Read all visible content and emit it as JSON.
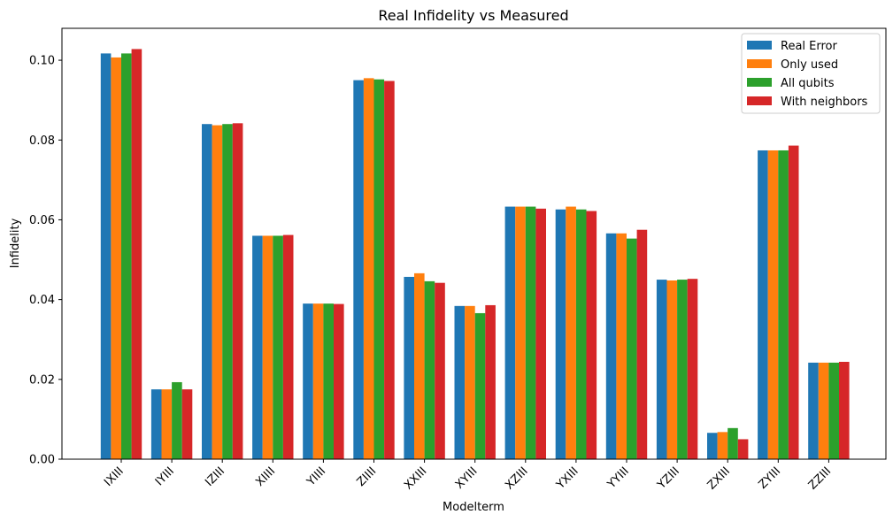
{
  "chart_data": {
    "type": "bar",
    "title": "Real Infidelity vs Measured",
    "xlabel": "Modelterm",
    "ylabel": "Infidelity",
    "ylim": [
      0,
      0.108
    ],
    "yticks": [
      "0.00",
      "0.02",
      "0.04",
      "0.06",
      "0.08",
      "0.10"
    ],
    "grid": false,
    "legend_position": "top-right",
    "categories": [
      "IXIII",
      "IYIII",
      "IZIII",
      "XIIII",
      "YIIII",
      "ZIIII",
      "XXIII",
      "XYIII",
      "XZIII",
      "YXIII",
      "YYIII",
      "YZIII",
      "ZXIII",
      "ZYIII",
      "ZZIII"
    ],
    "series": [
      {
        "name": "Real Error",
        "color": "#1f77b4",
        "values": [
          0.1017,
          0.0175,
          0.084,
          0.056,
          0.039,
          0.095,
          0.0457,
          0.0384,
          0.0633,
          0.0626,
          0.0566,
          0.045,
          0.0066,
          0.0774,
          0.0242
        ]
      },
      {
        "name": "Only used",
        "color": "#ff7f0e",
        "values": [
          0.1007,
          0.0175,
          0.0837,
          0.056,
          0.039,
          0.0955,
          0.0466,
          0.0384,
          0.0633,
          0.0633,
          0.0566,
          0.0448,
          0.0068,
          0.0774,
          0.0242
        ]
      },
      {
        "name": "All qubits",
        "color": "#2ca02c",
        "values": [
          0.1017,
          0.0193,
          0.084,
          0.056,
          0.039,
          0.0952,
          0.0446,
          0.0366,
          0.0633,
          0.0626,
          0.0553,
          0.045,
          0.0078,
          0.0774,
          0.0242
        ]
      },
      {
        "name": "With neighbors",
        "color": "#d62728",
        "values": [
          0.1028,
          0.0175,
          0.0842,
          0.0562,
          0.0389,
          0.0948,
          0.0442,
          0.0386,
          0.0628,
          0.0622,
          0.0575,
          0.0452,
          0.005,
          0.0786,
          0.0244
        ]
      }
    ]
  }
}
